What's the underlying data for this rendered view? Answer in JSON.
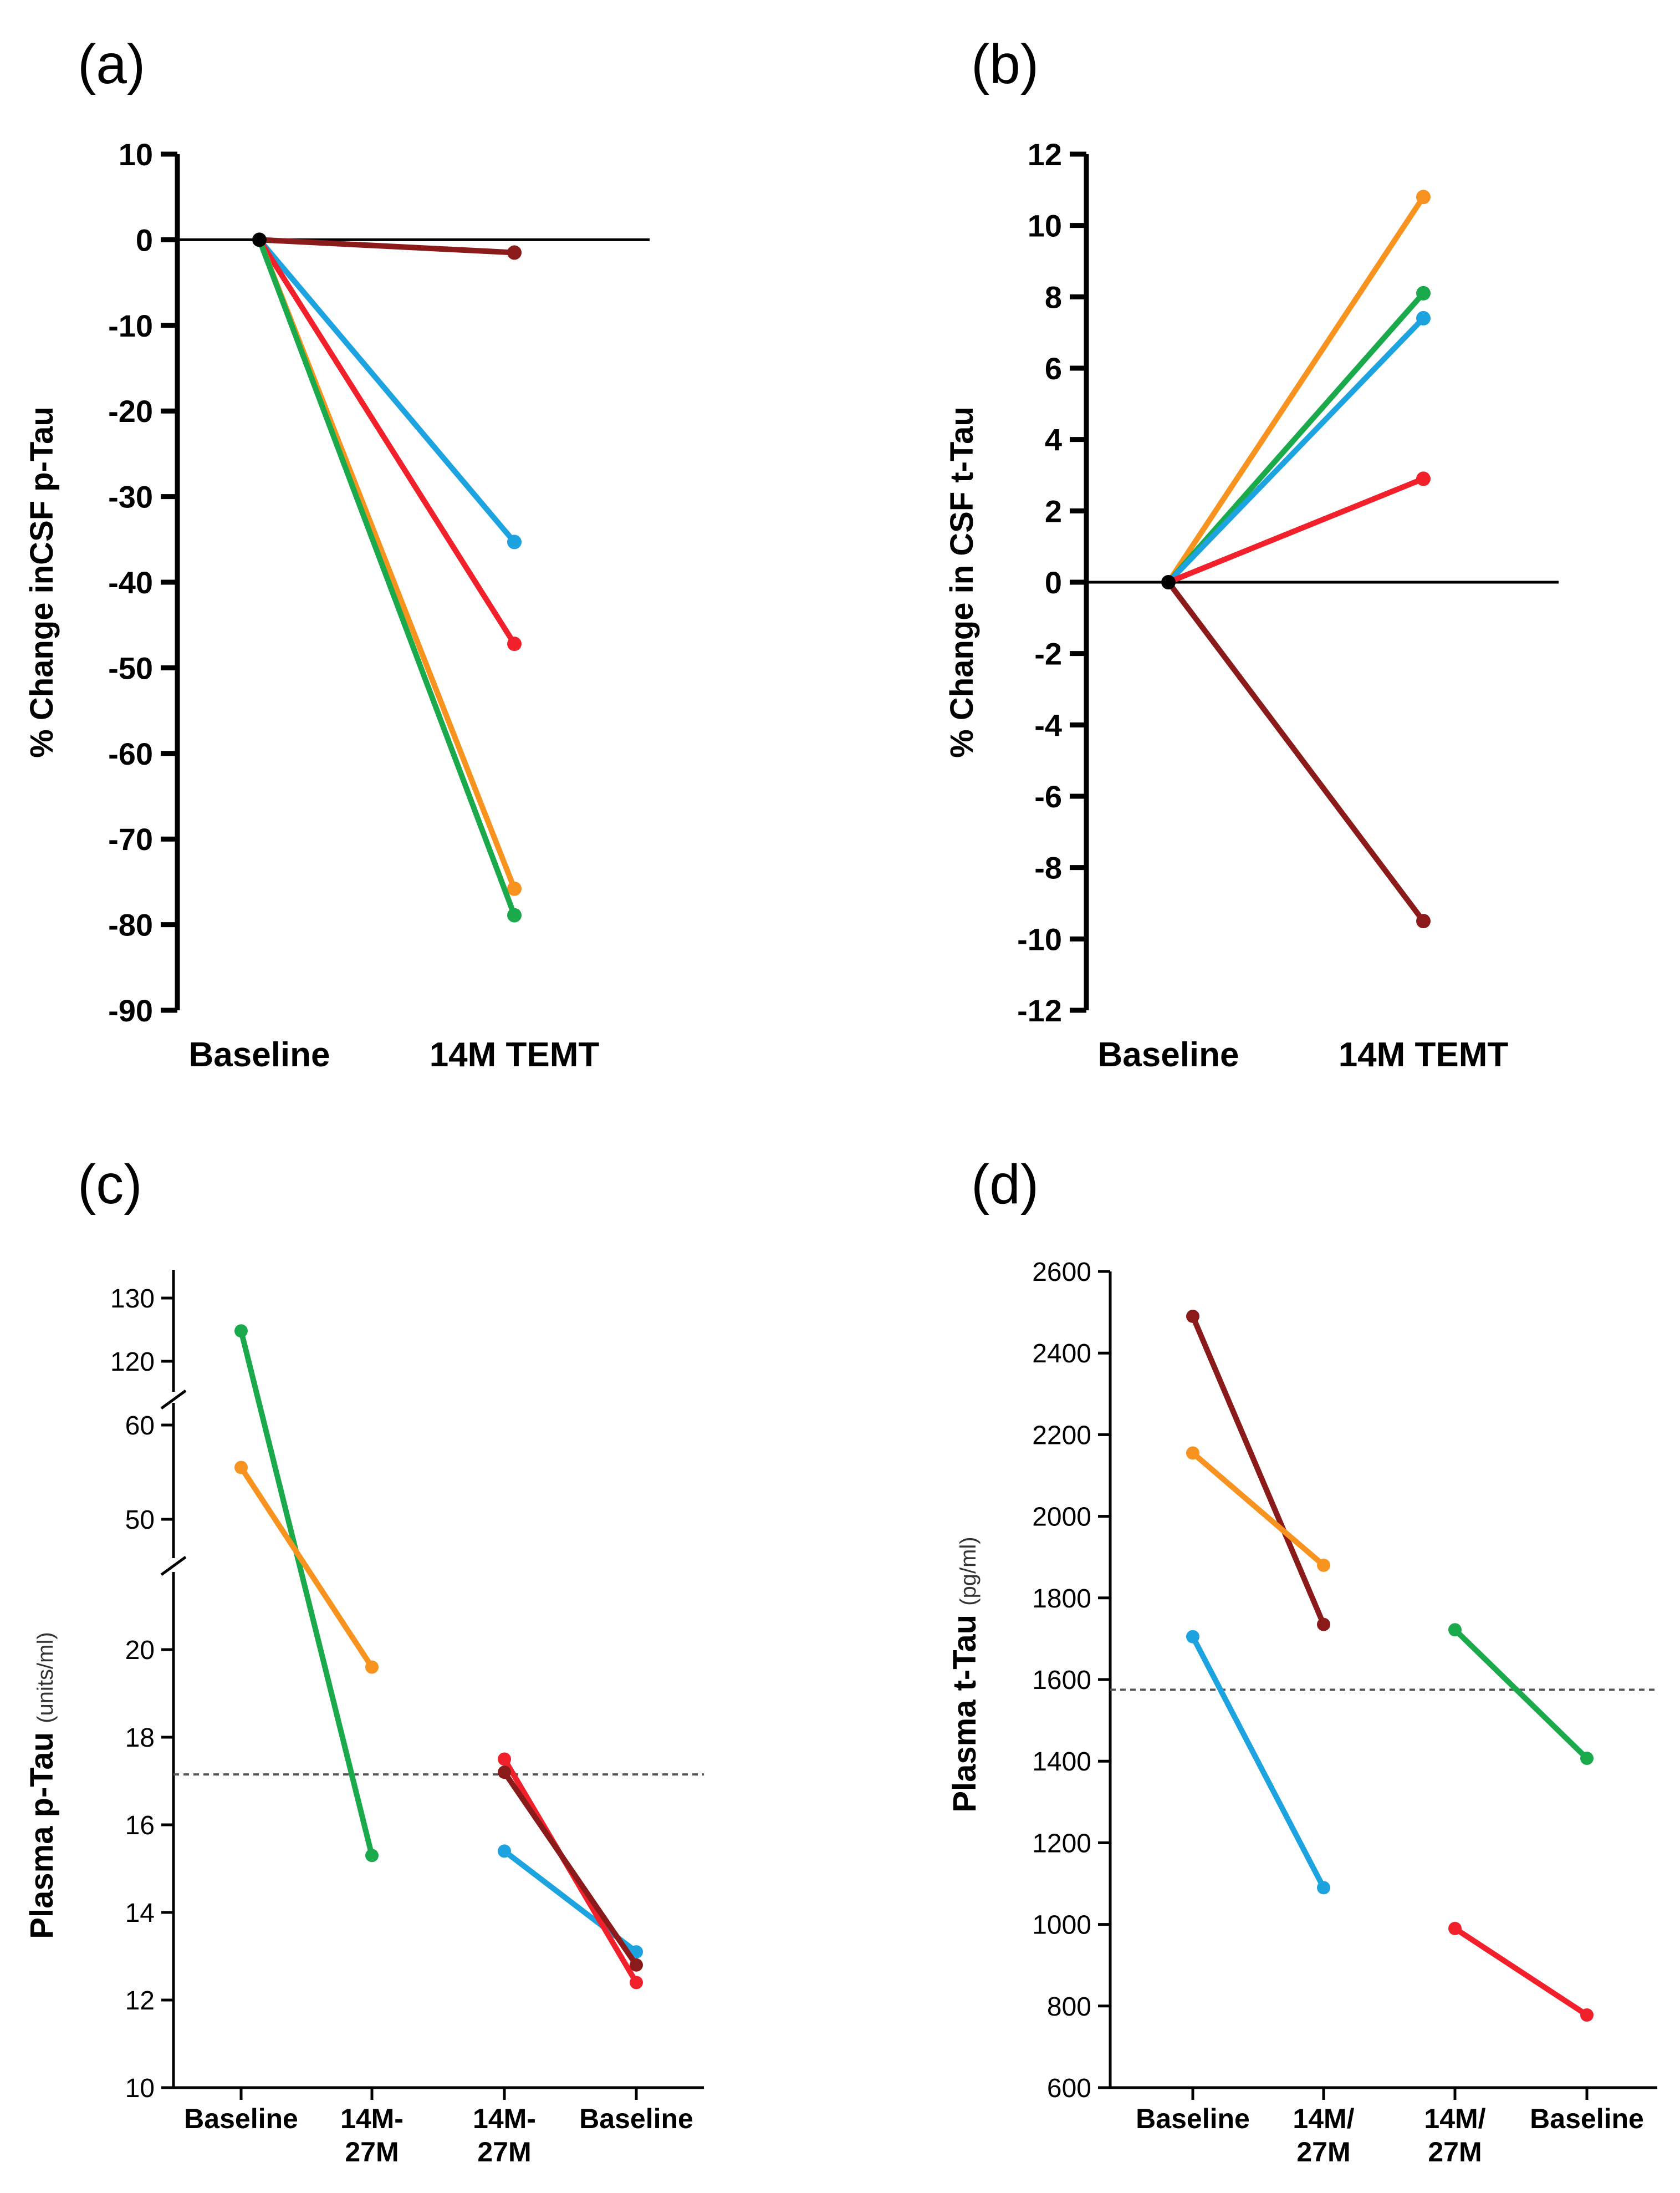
{
  "chart_data": [
    {
      "panel": "(a)",
      "type": "line",
      "ylabel": "% Change inCSF p-Tau",
      "categories": [
        "Baseline",
        "14M TEMT"
      ],
      "ylim": [
        -90,
        10
      ],
      "yticks": [
        10,
        0,
        -10,
        -20,
        -30,
        -40,
        -50,
        -60,
        -70,
        -80,
        -90
      ],
      "reference_line": 0,
      "series": [
        {
          "name": "dark red",
          "color": "#8B1A1A",
          "values": [
            0,
            -1.5
          ]
        },
        {
          "name": "blue",
          "color": "#1CA3E0",
          "values": [
            0,
            -35.3
          ]
        },
        {
          "name": "red",
          "color": "#F2202A",
          "values": [
            0,
            -47.2
          ]
        },
        {
          "name": "orange",
          "color": "#F7931E",
          "values": [
            0,
            -75.8
          ]
        },
        {
          "name": "green",
          "color": "#1AAA4B",
          "values": [
            0,
            -78.9
          ]
        }
      ]
    },
    {
      "panel": "(b)",
      "type": "line",
      "ylabel": "% Change in CSF t-Tau",
      "categories": [
        "Baseline",
        "14M TEMT"
      ],
      "ylim": [
        -12,
        12
      ],
      "yticks": [
        12,
        10,
        8,
        6,
        4,
        2,
        0,
        -2,
        -4,
        -6,
        -8,
        -10,
        -12
      ],
      "reference_line": 0,
      "series": [
        {
          "name": "orange",
          "color": "#F7931E",
          "values": [
            0,
            10.8
          ]
        },
        {
          "name": "green",
          "color": "#1AAA4B",
          "values": [
            0,
            8.1
          ]
        },
        {
          "name": "blue",
          "color": "#1CA3E0",
          "values": [
            0,
            7.4
          ]
        },
        {
          "name": "red",
          "color": "#F2202A",
          "values": [
            0,
            2.9
          ]
        },
        {
          "name": "dark red",
          "color": "#8B1A1A",
          "values": [
            0,
            -9.5
          ]
        }
      ]
    },
    {
      "panel": "(c)",
      "type": "line",
      "ylabel": "Plasma p-Tau",
      "yunit": "(units/ml)",
      "categories": [
        "Baseline",
        "14M-\n27M",
        "14M-\n27M",
        "Baseline"
      ],
      "axis_break": true,
      "yticks_top": [
        130,
        120
      ],
      "yticks_mid": [
        60,
        50
      ],
      "yticks_low": [
        20,
        18,
        16,
        14,
        12,
        10
      ],
      "reference_line": 17.15,
      "series": [
        {
          "name": "green",
          "color": "#1AAA4B",
          "points": [
            [
              0,
              124.8
            ],
            [
              1,
              15.3
            ]
          ]
        },
        {
          "name": "orange",
          "color": "#F7931E",
          "points": [
            [
              0,
              55.5
            ],
            [
              1,
              19.6
            ]
          ]
        },
        {
          "name": "blue",
          "color": "#1CA3E0",
          "points": [
            [
              2,
              15.4
            ],
            [
              3,
              13.1
            ]
          ]
        },
        {
          "name": "red",
          "color": "#F2202A",
          "points": [
            [
              2,
              17.5
            ],
            [
              3,
              12.4
            ]
          ]
        },
        {
          "name": "dark red",
          "color": "#8B1A1A",
          "points": [
            [
              2,
              17.2
            ],
            [
              3,
              12.8
            ]
          ]
        }
      ]
    },
    {
      "panel": "(d)",
      "type": "line",
      "ylabel": "Plasma t-Tau",
      "yunit": "(pg/ml)",
      "categories": [
        "Baseline",
        "14M/\n27M",
        "14M/\n27M",
        "Baseline"
      ],
      "ylim": [
        600,
        2600
      ],
      "yticks": [
        2600,
        2400,
        2200,
        2000,
        1800,
        1600,
        1400,
        1200,
        1000,
        800,
        600
      ],
      "reference_line": 1575,
      "series": [
        {
          "name": "dark red",
          "color": "#8B1A1A",
          "points": [
            [
              0,
              2490
            ],
            [
              1,
              1735
            ]
          ]
        },
        {
          "name": "orange",
          "color": "#F7931E",
          "points": [
            [
              0,
              2155
            ],
            [
              1,
              1880
            ]
          ]
        },
        {
          "name": "blue",
          "color": "#1CA3E0",
          "points": [
            [
              0,
              1705
            ],
            [
              1,
              1090
            ]
          ]
        },
        {
          "name": "green",
          "color": "#1AAA4B",
          "points": [
            [
              2,
              1722
            ],
            [
              3,
              1407
            ]
          ]
        },
        {
          "name": "red",
          "color": "#F2202A",
          "points": [
            [
              2,
              990
            ],
            [
              3,
              778
            ]
          ]
        }
      ]
    }
  ]
}
